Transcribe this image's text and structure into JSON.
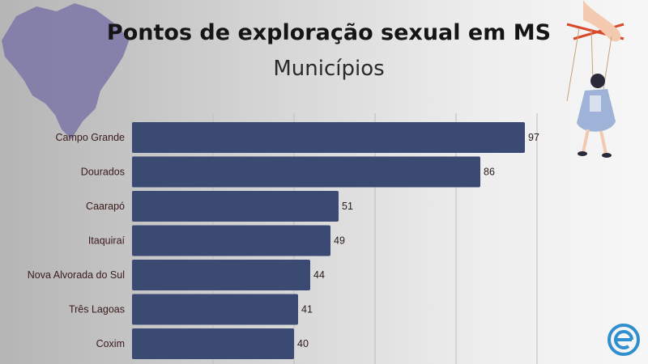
{
  "header": {
    "title": "Pontos de exploração sexual em MS",
    "subtitle": "Municípios"
  },
  "colors": {
    "bar": "#3b4a73",
    "label": "#3a1a1a",
    "value": "#2a1a1a",
    "grid": "#bdbdbd",
    "map": "#7e7aa8",
    "logo": "#2f8fcf"
  },
  "icons": {
    "map": "brazil-map-icon",
    "puppet": "puppet-illustration",
    "logo": "e-logo-icon"
  },
  "chart_data": {
    "type": "bar",
    "orientation": "horizontal",
    "categories": [
      "Campo Grande",
      "Dourados",
      "Caarapó",
      "Itaquiraí",
      "Nova Alvorada do Sul",
      "Três Lagoas",
      "Coxim"
    ],
    "values": [
      97,
      86,
      51,
      49,
      44,
      41,
      40
    ],
    "xlim": [
      0,
      100
    ],
    "grid": true,
    "data_labels": true
  }
}
